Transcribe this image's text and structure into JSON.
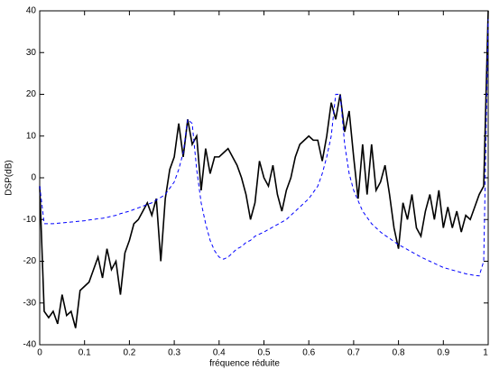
{
  "chart_data": {
    "type": "line",
    "xlabel": "fréquence réduite",
    "ylabel": "DSP(dB)",
    "x": [
      0,
      0.01,
      0.02,
      0.03,
      0.04,
      0.05,
      0.06,
      0.07,
      0.08,
      0.09,
      0.1,
      0.11,
      0.12,
      0.13,
      0.14,
      0.15,
      0.16,
      0.17,
      0.18,
      0.19,
      0.2,
      0.21,
      0.22,
      0.23,
      0.24,
      0.25,
      0.26,
      0.27,
      0.28,
      0.29,
      0.3,
      0.31,
      0.32,
      0.33,
      0.34,
      0.35,
      0.36,
      0.37,
      0.38,
      0.39,
      0.4,
      0.41,
      0.42,
      0.43,
      0.44,
      0.45,
      0.46,
      0.47,
      0.48,
      0.49,
      0.5,
      0.51,
      0.52,
      0.53,
      0.54,
      0.55,
      0.56,
      0.57,
      0.58,
      0.59,
      0.6,
      0.61,
      0.62,
      0.63,
      0.64,
      0.65,
      0.66,
      0.67,
      0.68,
      0.69,
      0.7,
      0.71,
      0.72,
      0.73,
      0.74,
      0.75,
      0.76,
      0.77,
      0.78,
      0.79,
      0.8,
      0.81,
      0.82,
      0.83,
      0.84,
      0.85,
      0.86,
      0.87,
      0.88,
      0.89,
      0.9,
      0.91,
      0.92,
      0.93,
      0.94,
      0.95,
      0.96,
      0.97,
      0.98,
      0.99,
      1
    ],
    "series": [
      {
        "color": "#000000",
        "line_style": "solid",
        "values": [
          -2,
          -32,
          -33.5,
          -32,
          -35,
          -28,
          -33,
          -32,
          -36,
          -27,
          -26,
          -25,
          -22,
          -19,
          -24,
          -17,
          -22,
          -20,
          -28,
          -18,
          -15,
          -11,
          -10,
          -8,
          -6,
          -9,
          -5,
          -20,
          -5,
          2,
          5,
          13,
          5,
          14,
          8,
          10,
          -3,
          7,
          1,
          5,
          5,
          6,
          7,
          5,
          3,
          0,
          -4,
          -10,
          -6,
          4,
          0,
          -2,
          3,
          -4,
          -8,
          -3,
          0,
          5,
          8,
          9,
          10,
          9,
          9,
          4,
          10,
          18,
          14,
          20,
          11,
          16,
          5,
          -5,
          8,
          -4,
          8,
          -3,
          -1,
          3,
          -4,
          -12,
          -17,
          -6,
          -10,
          -4,
          -12,
          -14,
          -8,
          -4,
          -10,
          -3,
          -12,
          -7,
          -12,
          -8,
          -13,
          -9,
          -10,
          -7,
          -4,
          -2,
          40
        ]
      },
      {
        "color": "#0000ff",
        "line_style": "dashed",
        "values": [
          -2,
          -11,
          -11,
          -11,
          -10.9,
          -10.8,
          -10.7,
          -10.6,
          -10.5,
          -10.4,
          -10.3,
          -10.1,
          -10,
          -9.8,
          -9.7,
          -9.5,
          -9.2,
          -9,
          -8.6,
          -8.3,
          -8,
          -7.6,
          -7.2,
          -6.8,
          -6.4,
          -6,
          -5.3,
          -4.7,
          -4,
          -2.5,
          -1,
          2,
          6,
          14,
          13,
          2,
          -6,
          -11,
          -15,
          -17.5,
          -19,
          -19.5,
          -19,
          -18,
          -17,
          -16.5,
          -15.5,
          -15,
          -14,
          -13.5,
          -13,
          -12.4,
          -11.8,
          -11.2,
          -10.6,
          -10,
          -9,
          -8,
          -7,
          -6,
          -5,
          -3.5,
          -2,
          1,
          5,
          10,
          20,
          20,
          8,
          1,
          -3,
          -5.5,
          -8,
          -9.5,
          -11,
          -12,
          -13,
          -13.8,
          -14.5,
          -15.3,
          -16,
          -16.6,
          -17.2,
          -17.8,
          -18.4,
          -19,
          -19.5,
          -20,
          -20.5,
          -21,
          -21.5,
          -21.8,
          -22.1,
          -22.4,
          -22.7,
          -23,
          -23.2,
          -23.4,
          -23.5,
          -20,
          38
        ]
      }
    ],
    "xlim": [
      0,
      1
    ],
    "ylim": [
      -40,
      40
    ],
    "xticks": [
      0,
      0.1,
      0.2,
      0.3,
      0.4,
      0.5,
      0.6,
      0.7,
      0.8,
      0.9,
      1
    ],
    "yticks": [
      -40,
      -30,
      -20,
      -10,
      0,
      10,
      20,
      30,
      40
    ]
  }
}
